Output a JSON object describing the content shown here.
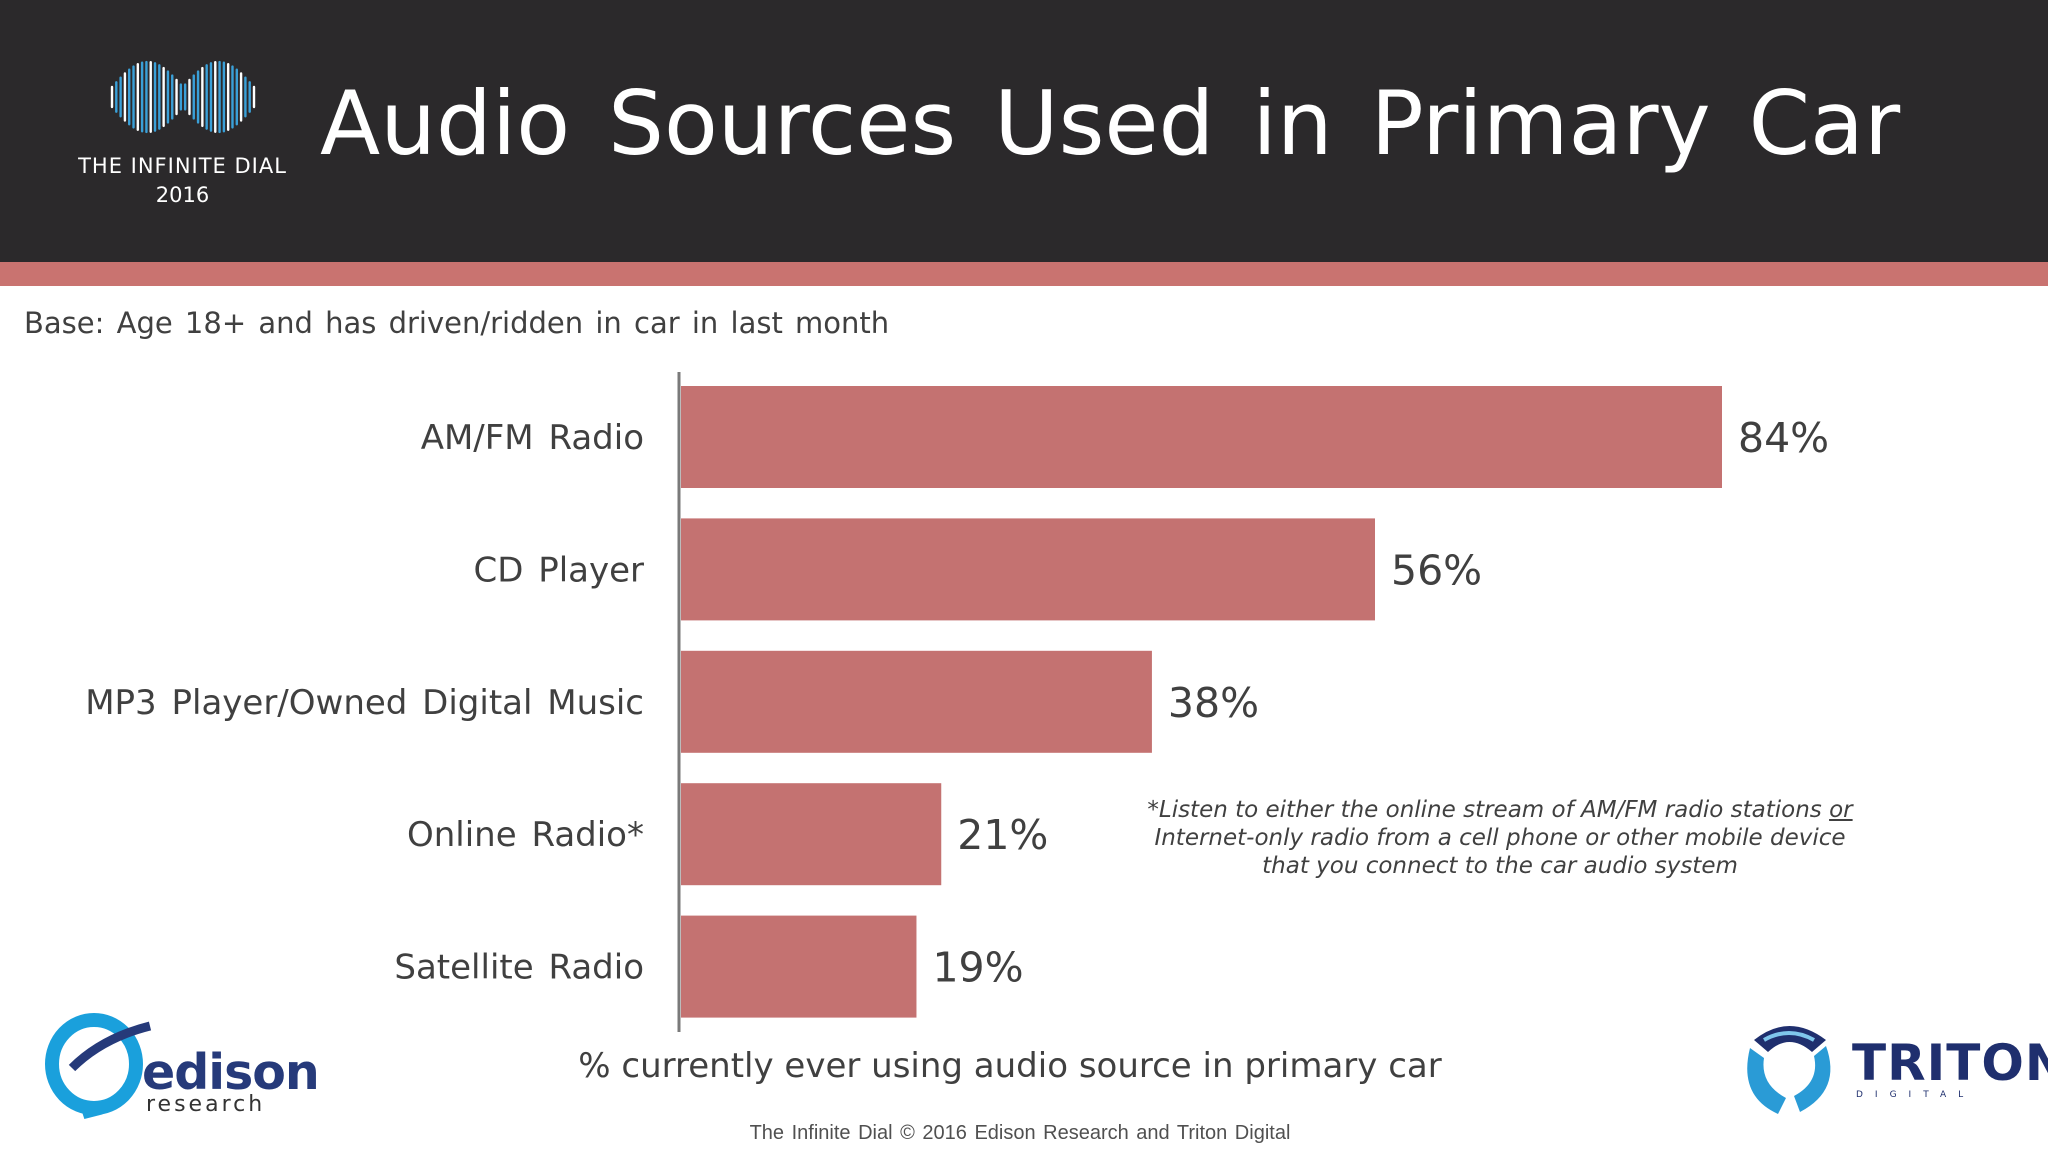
{
  "header": {
    "title": "Audio Sources Used in Primary Car",
    "logo_line1": "THE INFINITE DIAL",
    "logo_line2": "2016"
  },
  "base_note": "Base: Age 18+ and has driven/ridden in car in last month",
  "chart_data": {
    "type": "bar",
    "orientation": "horizontal",
    "categories": [
      "AM/FM Radio",
      "CD Player",
      "MP3 Player/Owned Digital Music",
      "Online Radio*",
      "Satellite Radio"
    ],
    "values": [
      84,
      56,
      38,
      21,
      19
    ],
    "value_labels": [
      "84%",
      "56%",
      "38%",
      "21%",
      "19%"
    ],
    "unit": "%",
    "xlabel": "% currently ever using audio source in primary car",
    "ylabel": "",
    "xlim": [
      0,
      100
    ],
    "grid": false,
    "bar_color": "#c47271"
  },
  "footnote": {
    "line1_before": "*Listen to either the online stream of AM/FM radio stations",
    "line1_or": "or",
    "line2": "Internet-only radio from a cell phone or other mobile device",
    "line3": "that you connect to the car audio system"
  },
  "footer": {
    "copyright": "The Infinite Dial   © 2016 Edison Research and Triton Digital",
    "edison_word": "edison",
    "edison_sub": "research",
    "triton_word": "TRITON",
    "triton_sub": "DIGITAL"
  },
  "colors": {
    "header_bg": "#2b292b",
    "accent_stripe": "#c97370",
    "bar": "#c47271",
    "text": "#404040"
  }
}
